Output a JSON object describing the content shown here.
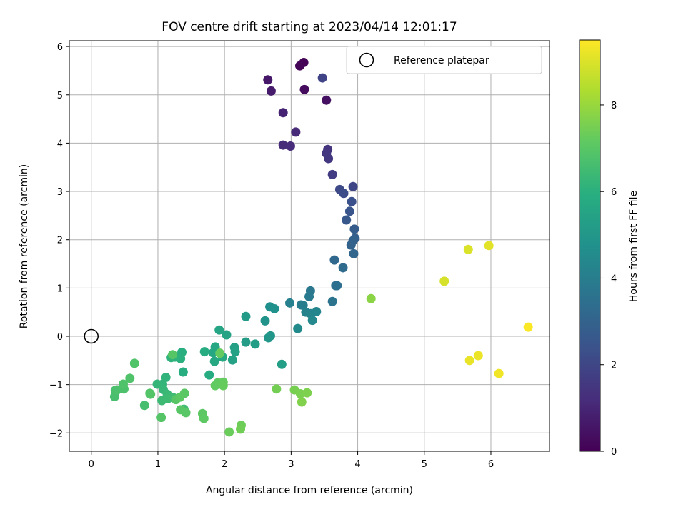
{
  "chart_data": {
    "type": "scatter",
    "title": "FOV centre drift starting at 2023/04/14 12:01:17",
    "xlabel": "Angular distance from reference (arcmin)",
    "ylabel": "Rotation from reference (arcmin)",
    "xlim": [
      -0.33,
      6.88
    ],
    "ylim": [
      -2.38,
      6.12
    ],
    "xticks": [
      0,
      1,
      2,
      3,
      4,
      5,
      6
    ],
    "yticks": [
      -2,
      -1,
      0,
      1,
      2,
      3,
      4,
      5,
      6
    ],
    "grid": true,
    "legend": {
      "position": "top-right",
      "entries": [
        "Reference platepar"
      ]
    },
    "reference_point": {
      "x": 0,
      "y": 0
    },
    "colorbar": {
      "label": "Hours from first FF file",
      "range": [
        0,
        9.5
      ],
      "ticks": [
        0,
        2,
        4,
        6,
        8
      ],
      "colormap": "viridis"
    },
    "points": [
      {
        "x": 3.19,
        "y": 5.67,
        "t": 0.05
      },
      {
        "x": 3.13,
        "y": 5.6,
        "t": 0.1
      },
      {
        "x": 3.2,
        "y": 5.11,
        "t": 0.3
      },
      {
        "x": 3.53,
        "y": 4.89,
        "t": 0.4
      },
      {
        "x": 2.65,
        "y": 5.31,
        "t": 0.6
      },
      {
        "x": 2.7,
        "y": 5.08,
        "t": 0.7
      },
      {
        "x": 2.88,
        "y": 4.63,
        "t": 0.9
      },
      {
        "x": 3.07,
        "y": 4.23,
        "t": 1.1
      },
      {
        "x": 2.88,
        "y": 3.96,
        "t": 1.15
      },
      {
        "x": 2.99,
        "y": 3.94,
        "t": 1.2
      },
      {
        "x": 3.55,
        "y": 3.87,
        "t": 1.4
      },
      {
        "x": 3.53,
        "y": 3.79,
        "t": 1.5
      },
      {
        "x": 3.56,
        "y": 3.68,
        "t": 1.55
      },
      {
        "x": 3.62,
        "y": 3.35,
        "t": 1.7
      },
      {
        "x": 3.47,
        "y": 5.35,
        "t": 1.9
      },
      {
        "x": 3.93,
        "y": 3.1,
        "t": 2.0
      },
      {
        "x": 3.73,
        "y": 3.04,
        "t": 2.1
      },
      {
        "x": 3.79,
        "y": 2.96,
        "t": 2.2
      },
      {
        "x": 3.91,
        "y": 2.79,
        "t": 2.35
      },
      {
        "x": 3.88,
        "y": 2.59,
        "t": 2.5
      },
      {
        "x": 3.83,
        "y": 2.41,
        "t": 2.6
      },
      {
        "x": 3.95,
        "y": 2.22,
        "t": 2.75
      },
      {
        "x": 3.96,
        "y": 2.03,
        "t": 2.85
      },
      {
        "x": 3.93,
        "y": 1.98,
        "t": 2.95
      },
      {
        "x": 3.9,
        "y": 1.89,
        "t": 3.0
      },
      {
        "x": 3.94,
        "y": 1.71,
        "t": 3.1
      },
      {
        "x": 3.65,
        "y": 1.58,
        "t": 3.2
      },
      {
        "x": 3.78,
        "y": 1.42,
        "t": 3.3
      },
      {
        "x": 3.67,
        "y": 1.05,
        "t": 3.4
      },
      {
        "x": 3.69,
        "y": 1.05,
        "t": 3.45
      },
      {
        "x": 3.62,
        "y": 0.72,
        "t": 3.6
      },
      {
        "x": 3.29,
        "y": 0.94,
        "t": 3.75
      },
      {
        "x": 3.27,
        "y": 0.82,
        "t": 3.85
      },
      {
        "x": 3.15,
        "y": 0.65,
        "t": 3.95
      },
      {
        "x": 3.18,
        "y": 0.64,
        "t": 4.0
      },
      {
        "x": 2.98,
        "y": 0.69,
        "t": 4.1
      },
      {
        "x": 3.22,
        "y": 0.5,
        "t": 4.2
      },
      {
        "x": 3.29,
        "y": 0.47,
        "t": 4.25
      },
      {
        "x": 3.38,
        "y": 0.51,
        "t": 4.3
      },
      {
        "x": 3.32,
        "y": 0.33,
        "t": 4.4
      },
      {
        "x": 3.1,
        "y": 0.16,
        "t": 4.5
      },
      {
        "x": 2.68,
        "y": 0.61,
        "t": 4.7
      },
      {
        "x": 2.75,
        "y": 0.57,
        "t": 4.75
      },
      {
        "x": 2.61,
        "y": 0.32,
        "t": 4.85
      },
      {
        "x": 2.69,
        "y": 0.01,
        "t": 4.95
      },
      {
        "x": 2.66,
        "y": -0.03,
        "t": 5.0
      },
      {
        "x": 2.32,
        "y": 0.41,
        "t": 5.1
      },
      {
        "x": 2.32,
        "y": -0.12,
        "t": 5.2
      },
      {
        "x": 2.46,
        "y": -0.16,
        "t": 5.25
      },
      {
        "x": 2.86,
        "y": -0.58,
        "t": 5.3
      },
      {
        "x": 2.15,
        "y": -0.23,
        "t": 5.35
      },
      {
        "x": 2.16,
        "y": -0.32,
        "t": 5.4
      },
      {
        "x": 2.12,
        "y": -0.49,
        "t": 5.45
      },
      {
        "x": 2.03,
        "y": 0.03,
        "t": 5.5
      },
      {
        "x": 1.92,
        "y": 0.13,
        "t": 5.55
      },
      {
        "x": 1.86,
        "y": -0.22,
        "t": 5.6
      },
      {
        "x": 1.83,
        "y": -0.34,
        "t": 5.65
      },
      {
        "x": 1.85,
        "y": -0.52,
        "t": 5.7
      },
      {
        "x": 1.97,
        "y": -0.43,
        "t": 5.75
      },
      {
        "x": 1.77,
        "y": -0.8,
        "t": 5.8
      },
      {
        "x": 1.7,
        "y": -0.32,
        "t": 5.85
      },
      {
        "x": 1.38,
        "y": -0.74,
        "t": 5.9
      },
      {
        "x": 1.36,
        "y": -0.33,
        "t": 5.95
      },
      {
        "x": 1.34,
        "y": -0.46,
        "t": 6.0
      },
      {
        "x": 1.26,
        "y": -0.43,
        "t": 6.05
      },
      {
        "x": 1.2,
        "y": -0.44,
        "t": 6.1
      },
      {
        "x": 1.12,
        "y": -0.85,
        "t": 6.15
      },
      {
        "x": 1.07,
        "y": -0.99,
        "t": 6.2
      },
      {
        "x": 0.99,
        "y": -0.99,
        "t": 6.25
      },
      {
        "x": 1.08,
        "y": -1.1,
        "t": 6.3
      },
      {
        "x": 1.14,
        "y": -1.2,
        "t": 6.35
      },
      {
        "x": 1.06,
        "y": -1.33,
        "t": 6.4
      },
      {
        "x": 1.15,
        "y": -1.29,
        "t": 6.45
      },
      {
        "x": 1.23,
        "y": -1.27,
        "t": 6.5
      },
      {
        "x": 1.39,
        "y": -1.51,
        "t": 6.55
      },
      {
        "x": 0.8,
        "y": -1.43,
        "t": 6.6
      },
      {
        "x": 0.35,
        "y": -1.25,
        "t": 6.65
      },
      {
        "x": 0.36,
        "y": -1.12,
        "t": 6.7
      },
      {
        "x": 0.39,
        "y": -1.11,
        "t": 6.72
      },
      {
        "x": 0.49,
        "y": -1.09,
        "t": 6.75
      },
      {
        "x": 0.48,
        "y": -0.99,
        "t": 6.8
      },
      {
        "x": 0.58,
        "y": -0.87,
        "t": 6.82
      },
      {
        "x": 0.65,
        "y": -0.56,
        "t": 6.85
      },
      {
        "x": 0.88,
        "y": -1.18,
        "t": 6.88
      },
      {
        "x": 0.89,
        "y": -1.2,
        "t": 6.9
      },
      {
        "x": 1.05,
        "y": -1.68,
        "t": 6.92
      },
      {
        "x": 1.22,
        "y": -0.38,
        "t": 6.95
      },
      {
        "x": 1.27,
        "y": -1.31,
        "t": 6.97
      },
      {
        "x": 1.34,
        "y": -1.52,
        "t": 7.0
      },
      {
        "x": 1.42,
        "y": -1.58,
        "t": 7.02
      },
      {
        "x": 1.4,
        "y": -1.18,
        "t": 7.05
      },
      {
        "x": 1.33,
        "y": -1.26,
        "t": 7.07
      },
      {
        "x": 1.67,
        "y": -1.6,
        "t": 7.1
      },
      {
        "x": 1.69,
        "y": -1.7,
        "t": 7.12
      },
      {
        "x": 1.9,
        "y": -0.96,
        "t": 7.15
      },
      {
        "x": 1.86,
        "y": -1.02,
        "t": 7.17
      },
      {
        "x": 1.93,
        "y": -0.35,
        "t": 7.2
      },
      {
        "x": 1.98,
        "y": -0.95,
        "t": 7.22
      },
      {
        "x": 1.98,
        "y": -1.02,
        "t": 7.25
      },
      {
        "x": 2.07,
        "y": -1.98,
        "t": 7.3
      },
      {
        "x": 2.25,
        "y": -1.84,
        "t": 7.35
      },
      {
        "x": 2.24,
        "y": -1.92,
        "t": 7.4
      },
      {
        "x": 2.78,
        "y": -1.09,
        "t": 7.45
      },
      {
        "x": 3.05,
        "y": -1.11,
        "t": 7.5
      },
      {
        "x": 3.14,
        "y": -1.19,
        "t": 7.55
      },
      {
        "x": 3.24,
        "y": -1.17,
        "t": 7.6
      },
      {
        "x": 3.16,
        "y": -1.36,
        "t": 7.65
      },
      {
        "x": 4.2,
        "y": 0.78,
        "t": 7.8
      },
      {
        "x": 5.3,
        "y": 1.14,
        "t": 8.9
      },
      {
        "x": 5.66,
        "y": 1.8,
        "t": 9.0
      },
      {
        "x": 5.97,
        "y": 1.88,
        "t": 9.1
      },
      {
        "x": 5.68,
        "y": -0.5,
        "t": 9.2
      },
      {
        "x": 5.81,
        "y": -0.4,
        "t": 9.25
      },
      {
        "x": 6.12,
        "y": -0.77,
        "t": 9.3
      },
      {
        "x": 6.56,
        "y": 0.19,
        "t": 9.45
      }
    ]
  }
}
